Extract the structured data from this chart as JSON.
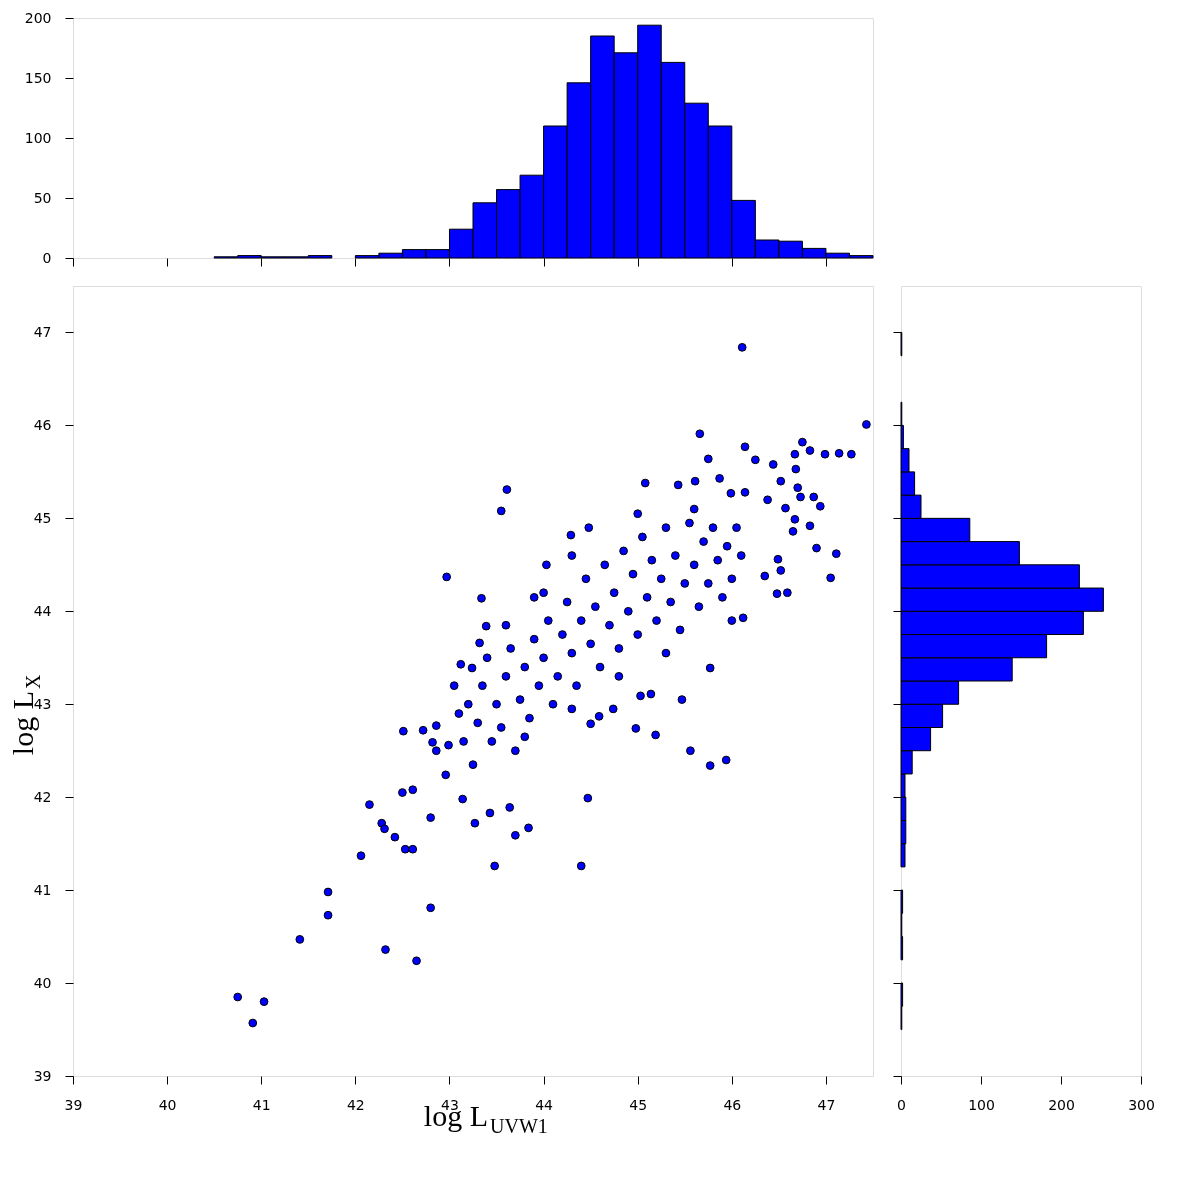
{
  "chart_data": [
    {
      "type": "histogram",
      "bins": [
        40.5,
        40.75,
        41,
        41.25,
        41.5,
        41.75,
        42,
        42.25,
        42.5,
        42.75,
        43,
        43.25,
        43.5,
        43.75,
        44,
        44.25,
        44.5,
        44.75,
        45,
        45.25,
        45.5,
        45.75,
        46,
        46.25,
        46.5,
        46.75,
        47,
        47.25,
        47.5
      ],
      "values": [
        1,
        2,
        1,
        1,
        2,
        0,
        2,
        4,
        7,
        7,
        24,
        46,
        57,
        69,
        110,
        146,
        185,
        171,
        194,
        163,
        129,
        110,
        48,
        15,
        14,
        8,
        4,
        2
      ],
      "color": "#0000ff",
      "xlim": [
        39,
        47.5
      ],
      "xticks": [
        {
          "value": 39,
          "label": null
        },
        {
          "value": 40,
          "label": null
        },
        {
          "value": 41,
          "label": null
        },
        {
          "value": 42,
          "label": null
        },
        {
          "value": 43,
          "label": null
        },
        {
          "value": 44,
          "label": null
        },
        {
          "value": 45,
          "label": null
        },
        {
          "value": 46,
          "label": null
        },
        {
          "value": 47,
          "label": null
        }
      ],
      "ylim": [
        0,
        200
      ],
      "yticks": [
        0,
        50,
        100,
        150,
        200
      ],
      "tick_labels": "y",
      "grid": false
    },
    {
      "type": "scatter",
      "xlabel": "log L$_{UVW1}$",
      "ylabel": "log L$_{X}$",
      "xlim": [
        39,
        47.5
      ],
      "ylim": [
        39,
        47.5
      ],
      "xticks": [
        39,
        40,
        41,
        42,
        43,
        44,
        45,
        46,
        47
      ],
      "yticks": [
        39,
        40,
        41,
        42,
        43,
        44,
        45,
        46,
        47
      ],
      "grid": false,
      "marker": "circle",
      "series": [
        {
          "color": "#0000ff",
          "x": [
            40.75,
            40.91,
            41.03,
            41.41,
            41.71,
            41.71,
            42.06,
            42.15,
            42.28,
            42.31,
            42.42,
            42.53,
            42.61,
            42.5,
            42.61,
            42.8,
            42.32,
            42.8,
            42.65,
            42.96,
            42.51,
            43.14,
            43.27,
            43.43,
            43.64,
            43.7,
            43.84,
            43.48,
            44.4,
            44.47,
            42.97,
            46.11,
            47.43,
            45.66,
            46.14,
            45.75,
            46.75,
            46.83,
            46.67,
            46.99,
            47.14,
            47.27,
            46.25,
            46.44,
            46.52,
            46.68,
            46.7,
            46.73,
            46.87,
            46.94,
            46.38,
            46.57,
            46.83,
            46.67,
            46.65,
            46.9,
            47.11,
            47.05,
            46.49,
            46.52,
            46.35,
            46.48,
            46.59,
            46.12,
            45.77,
            45.47,
            45.56,
            45.77,
            45.94,
            45.19,
            44.98,
            44.74,
            44.59,
            44.5,
            45.14,
            45.03,
            43.61,
            43.55,
            43.34,
            45.08,
            44.48,
            44.29,
            44.03,
            43.9,
            42.72,
            42.86,
            42.82,
            42.99,
            43.32,
            43.39,
            43.12,
            43.24,
            45.43,
            45.61,
            45.87,
            45.99,
            46.14,
            42.86,
            43.05,
            43.1,
            43.2,
            43.15,
            43.3,
            43.35,
            43.45,
            43.4,
            43.25,
            43.5,
            43.55,
            43.6,
            43.7,
            43.65,
            43.75,
            43.8,
            43.85,
            43.9,
            43.95,
            44.0,
            44.05,
            44.1,
            44.15,
            44.2,
            44.25,
            44.3,
            44.35,
            44.4,
            44.45,
            44.5,
            44.55,
            44.6,
            44.65,
            44.7,
            44.75,
            44.8,
            44.85,
            44.9,
            44.95,
            45.0,
            45.05,
            45.1,
            45.15,
            45.2,
            45.25,
            45.3,
            45.35,
            45.4,
            45.45,
            45.5,
            45.55,
            45.6,
            45.65,
            45.7,
            45.75,
            45.8,
            45.85,
            45.9,
            45.95,
            46.0,
            46.05,
            46.1,
            44.0,
            44.3,
            43.6,
            45.0,
            45.6,
            44.8,
            45.3,
            46.0,
            43.8,
            44.3
          ],
          "values": [
            39.85,
            39.57,
            39.8,
            40.47,
            40.98,
            40.73,
            41.37,
            41.92,
            41.72,
            41.66,
            41.57,
            41.44,
            41.44,
            42.05,
            42.08,
            41.78,
            40.36,
            40.81,
            40.24,
            42.24,
            42.71,
            41.98,
            41.72,
            41.83,
            41.89,
            41.59,
            41.67,
            41.26,
            41.26,
            41.99,
            44.37,
            46.84,
            46.01,
            45.91,
            45.77,
            45.64,
            45.82,
            45.73,
            45.69,
            45.69,
            45.7,
            45.69,
            45.63,
            45.58,
            45.4,
            45.53,
            45.33,
            45.23,
            45.23,
            45.13,
            45.2,
            45.11,
            44.92,
            44.99,
            44.86,
            44.68,
            44.62,
            44.36,
            44.56,
            44.44,
            44.38,
            44.19,
            44.2,
            43.93,
            43.39,
            43.05,
            42.5,
            42.34,
            42.4,
            42.67,
            42.74,
            42.95,
            42.87,
            42.79,
            43.11,
            43.09,
            45.31,
            45.08,
            44.14,
            45.38,
            44.9,
            44.82,
            44.5,
            44.15,
            42.72,
            42.77,
            42.59,
            42.56,
            43.66,
            43.84,
            43.43,
            43.39,
            45.36,
            45.4,
            45.43,
            45.27,
            45.28,
            42.5,
            43.2,
            42.9,
            43.0,
            42.6,
            42.8,
            43.2,
            42.6,
            43.5,
            42.35,
            43.0,
            42.75,
            43.3,
            42.5,
            43.6,
            43.05,
            43.4,
            42.85,
            43.7,
            43.2,
            43.5,
            43.9,
            43.0,
            43.3,
            43.75,
            44.1,
            43.55,
            43.2,
            43.9,
            44.35,
            43.65,
            44.05,
            43.4,
            44.5,
            43.85,
            44.2,
            43.6,
            44.65,
            44.0,
            44.4,
            43.75,
            44.8,
            44.15,
            44.55,
            43.9,
            44.35,
            44.9,
            44.1,
            44.6,
            43.8,
            44.3,
            44.95,
            44.5,
            44.05,
            44.75,
            44.3,
            44.9,
            44.55,
            44.15,
            44.7,
            44.35,
            44.9,
            44.6,
            44.2,
            44.6,
            43.85,
            45.05,
            45.1,
            43.3,
            43.55,
            43.9,
            42.65,
            42.95
          ]
        }
      ]
    },
    {
      "type": "histogram",
      "orientation": "horizontal",
      "bins": [
        39.5,
        39.75,
        40,
        40.25,
        40.5,
        40.75,
        41,
        41.25,
        41.5,
        41.75,
        42,
        42.25,
        42.5,
        42.75,
        43,
        43.25,
        43.5,
        43.75,
        44,
        44.25,
        44.5,
        44.75,
        45,
        45.25,
        45.5,
        45.75,
        46,
        46.25,
        46.5,
        46.75,
        47
      ],
      "values": [
        1,
        2,
        0,
        2,
        1,
        2,
        0,
        5,
        6,
        6,
        5,
        14,
        37,
        52,
        72,
        139,
        182,
        228,
        253,
        223,
        148,
        86,
        25,
        17,
        10,
        3,
        1,
        0,
        0,
        1
      ],
      "color": "#0000ff",
      "xlim": [
        0,
        300
      ],
      "xticks": [
        0,
        100,
        200,
        300
      ],
      "ylim": [
        39,
        47.5
      ],
      "yticks": [
        {
          "value": 39,
          "label": null
        },
        {
          "value": 40,
          "label": null
        },
        {
          "value": 41,
          "label": null
        },
        {
          "value": 42,
          "label": null
        },
        {
          "value": 43,
          "label": null
        },
        {
          "value": 44,
          "label": null
        },
        {
          "value": 45,
          "label": null
        },
        {
          "value": 46,
          "label": null
        },
        {
          "value": 47,
          "label": null
        }
      ],
      "tick_labels": "x",
      "grid": false
    }
  ]
}
